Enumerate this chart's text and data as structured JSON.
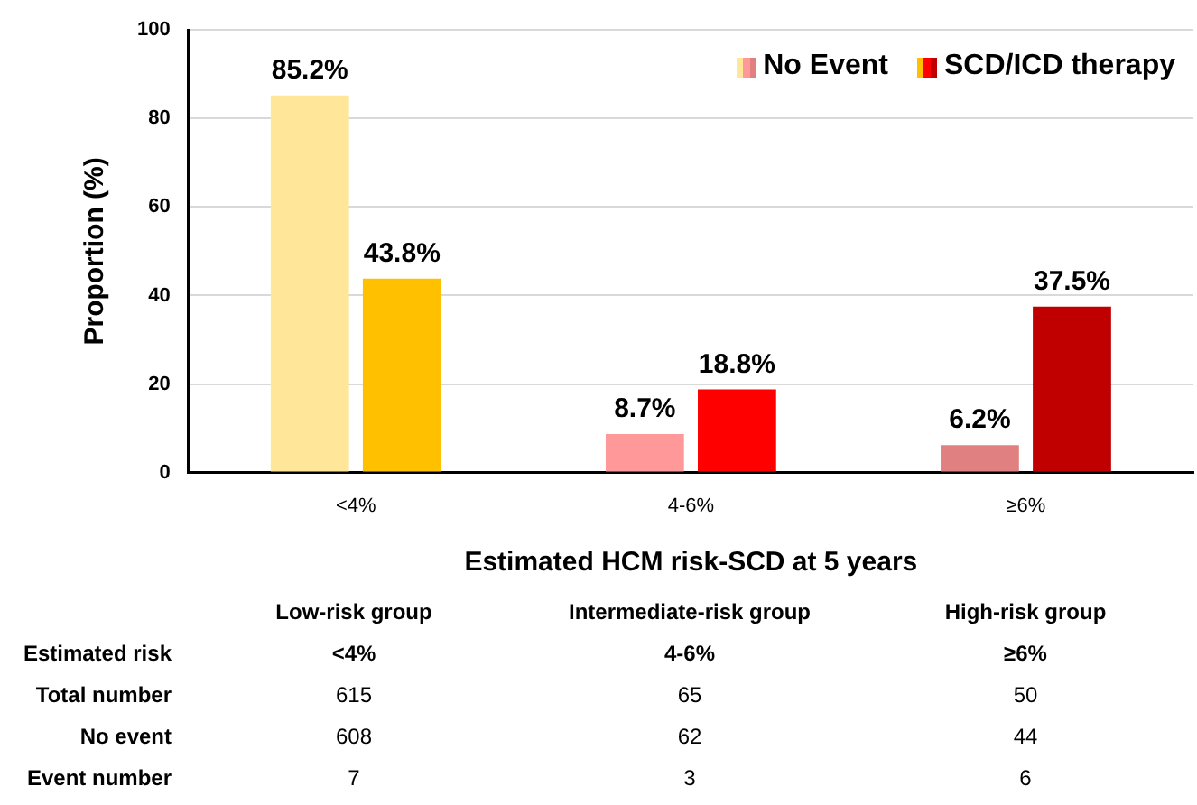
{
  "chart_data": [
    {
      "type": "bar",
      "xlabel": "Estimated HCM risk-SCD at 5 years",
      "ylabel": "Proportion (%)",
      "categories": [
        "<4%",
        "4-6%",
        "≥6%"
      ],
      "series": [
        {
          "name": "No Event",
          "colors": [
            "#ffe699",
            "#ff9999",
            "#e08080"
          ],
          "values": [
            85.2,
            8.7,
            6.2
          ],
          "value_labels": [
            "85.2%",
            "8.7%",
            "6.2%"
          ]
        },
        {
          "name": "SCD/ICD therapy",
          "colors": [
            "#ffc000",
            "#ff0000",
            "#c00000"
          ],
          "values": [
            43.8,
            18.8,
            37.5
          ],
          "value_labels": [
            "43.8%",
            "18.8%",
            "37.5%"
          ]
        }
      ],
      "ylim": [
        0,
        100
      ],
      "yticks": [
        0,
        20,
        40,
        60,
        80,
        100
      ],
      "grid": "y",
      "legend": "top right"
    },
    {
      "type": "other",
      "categories": [
        "Low-risk group",
        "Intermediate-risk group",
        "High-risk group"
      ],
      "y_categories": [
        "Estimated risk",
        "Total number",
        "No event",
        "Event number"
      ],
      "cell_labels": [
        [
          "<4%",
          "4-6%",
          "≥6%"
        ],
        [
          "615",
          "65",
          "50"
        ],
        [
          "608",
          "62",
          "44"
        ],
        [
          "7",
          "3",
          "6"
        ]
      ]
    }
  ]
}
